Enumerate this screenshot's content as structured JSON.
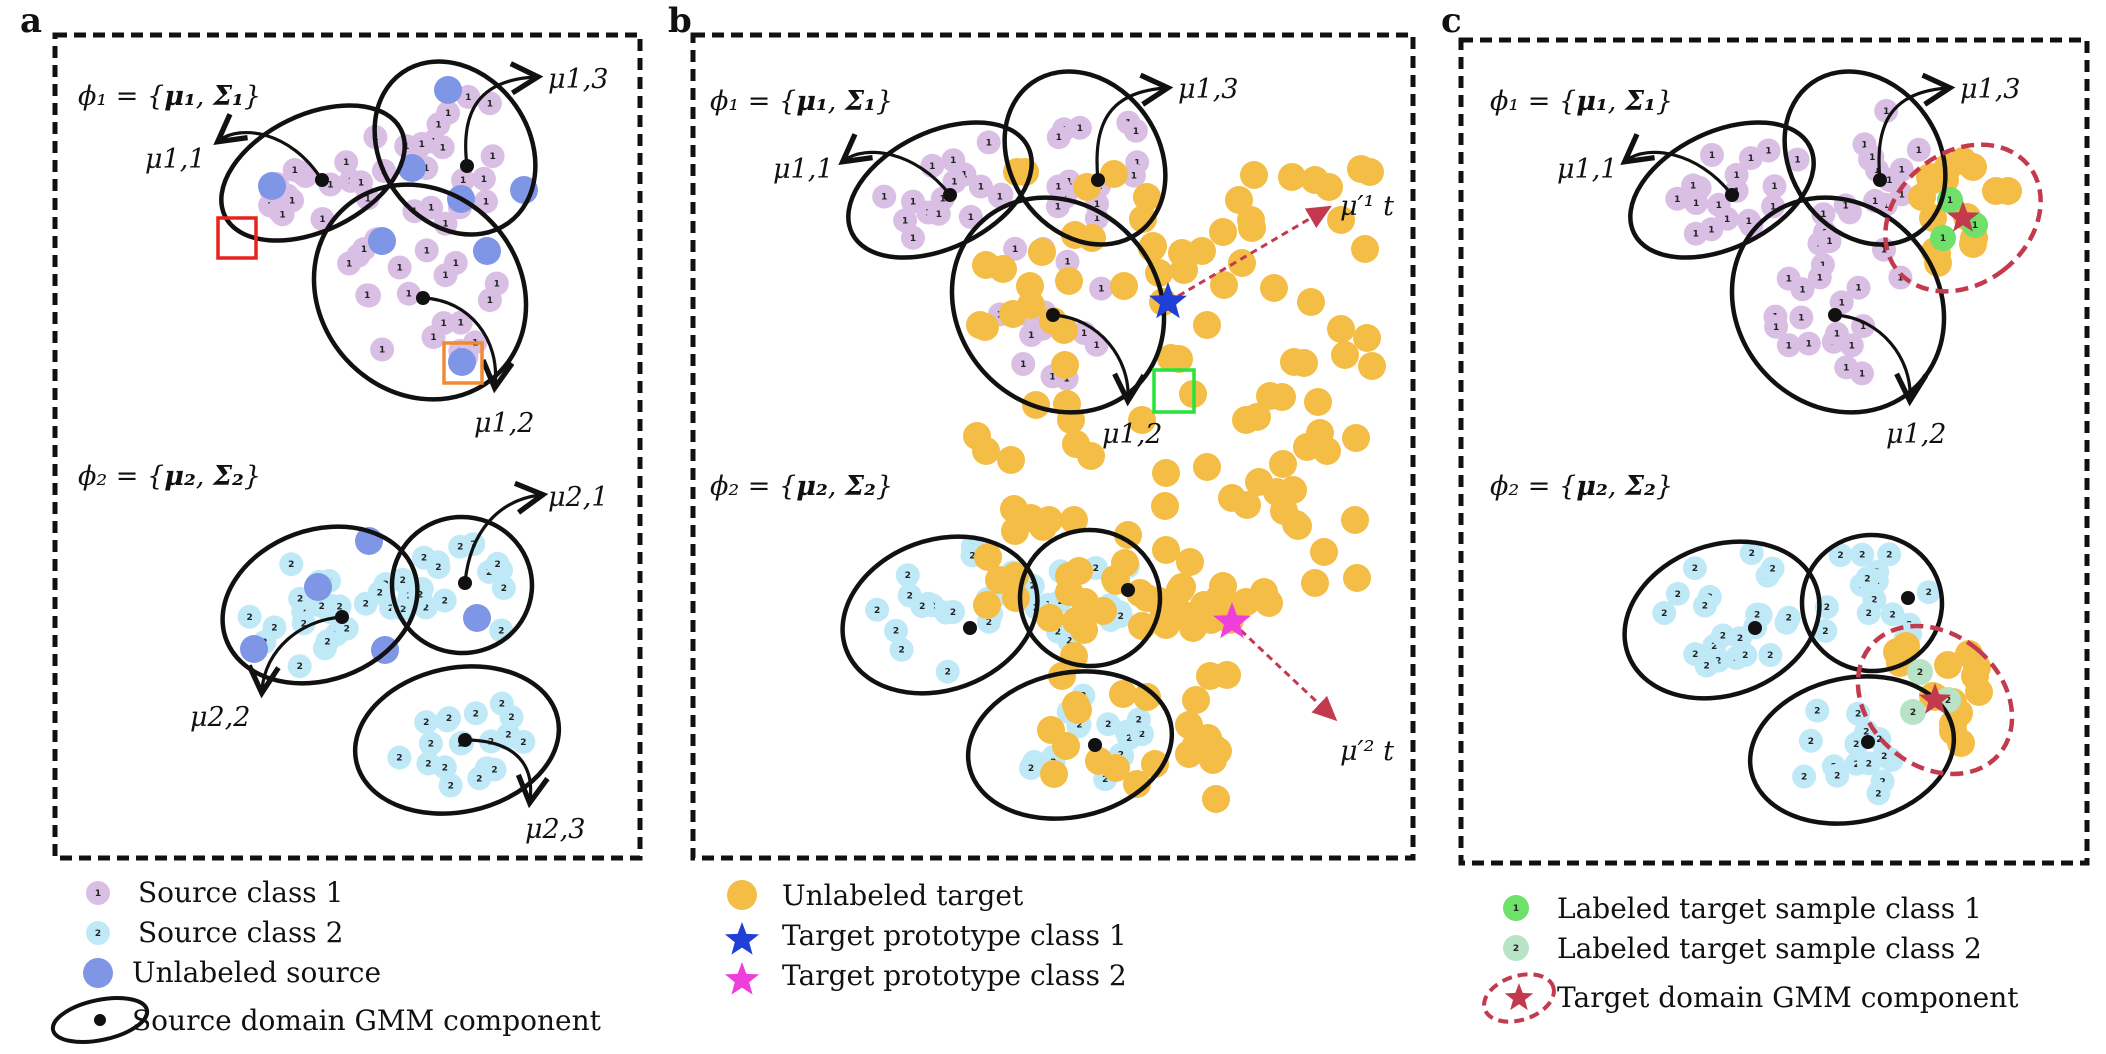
{
  "panels": [
    {
      "letter": "a",
      "phi1": {
        "prefix": "ϕ₁ = {",
        "mu": "μ₁",
        "sep": ", ",
        "sigma": "Σ₁",
        "suffix": "}"
      },
      "phi2": {
        "prefix": "ϕ₂ = {",
        "mu": "μ₂",
        "sep": ", ",
        "sigma": "Σ₂",
        "suffix": "}"
      },
      "means": [
        "μ1,1",
        "μ1,3",
        "μ1,2",
        "μ2,1",
        "μ2,2",
        "μ2,3"
      ]
    },
    {
      "letter": "b",
      "phi1": {
        "prefix": "ϕ₁ = {",
        "mu": "μ₁",
        "sep": ", ",
        "sigma": "Σ₁",
        "suffix": "}"
      },
      "phi2": {
        "prefix": "ϕ₂ = {",
        "mu": "μ₂",
        "sep": ", ",
        "sigma": "Σ₂",
        "suffix": "}"
      },
      "means": [
        "μ1,1",
        "μ1,3",
        "μ1,2"
      ],
      "target_means": [
        "μ′¹ t",
        "μ′² t"
      ]
    },
    {
      "letter": "c",
      "phi1": {
        "prefix": "ϕ₁ = {",
        "mu": "μ₁",
        "sep": ", ",
        "sigma": "Σ₁",
        "suffix": "}"
      },
      "phi2": {
        "prefix": "ϕ₂ = {",
        "mu": "μ₂",
        "sep": ", ",
        "sigma": "Σ₂",
        "suffix": "}"
      },
      "means": [
        "μ1,1",
        "μ1,3",
        "μ1,2"
      ]
    }
  ],
  "point_labels": {
    "class1": "1",
    "class2": "2"
  },
  "legend_a": [
    "Source class 1",
    "Source class 2",
    "Unlabeled source",
    "Source domain GMM component"
  ],
  "legend_b": [
    "Unlabeled target",
    "Target prototype class 1",
    "Target prototype class 2"
  ],
  "legend_c": [
    "Labeled target sample class 1",
    "Labeled target sample class 2",
    "Target domain GMM component"
  ],
  "colors": {
    "source_class1": "#d9bfe3",
    "source_class2": "#bfe9f7",
    "unlabeled_source": "#7f95e6",
    "unlabeled_target": "#f4bd46",
    "prototype_class1": "#1f3fd6",
    "prototype_class2": "#ee3fdc",
    "labeled_target_class1": "#6fe06a",
    "labeled_target_class2": "#b8e3c6",
    "target_gmm": "#c33a4e",
    "highlight_red": "#e8231f",
    "highlight_orange": "#f08a33",
    "highlight_green": "#27e33a"
  }
}
